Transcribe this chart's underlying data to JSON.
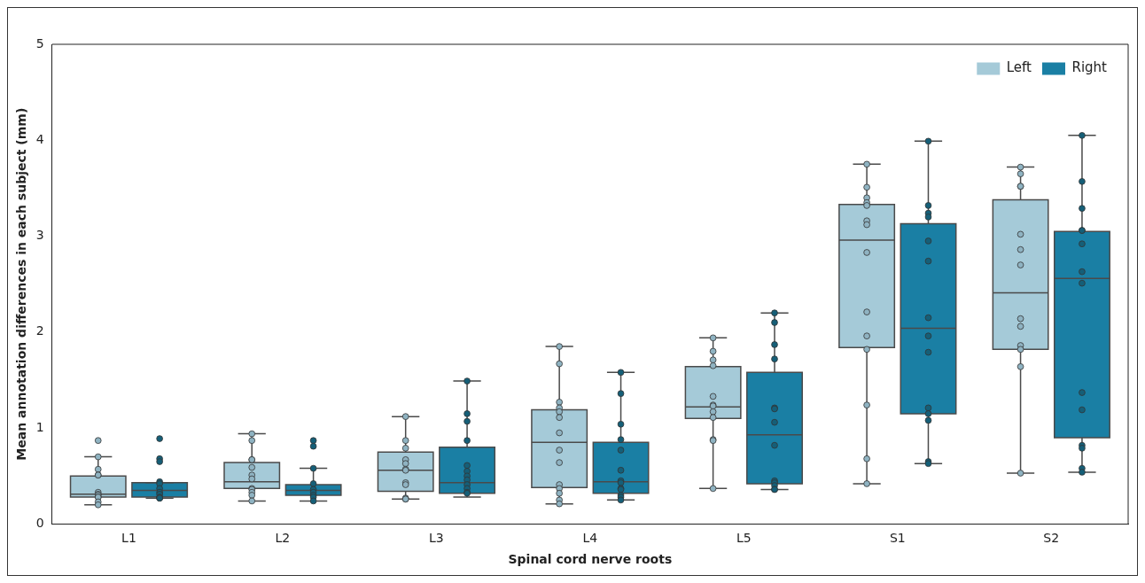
{
  "chart_data": {
    "type": "box",
    "xlabel": "Spinal cord nerve roots",
    "ylabel": "Mean annotation differences in each subject (mm)",
    "categories": [
      "L1",
      "L2",
      "L3",
      "L4",
      "L5",
      "S1",
      "S2"
    ],
    "ylim": [
      0,
      5
    ],
    "yticks": [
      0,
      1,
      2,
      3,
      4,
      5
    ],
    "legend": "top right",
    "marker": "circle",
    "series": [
      {
        "name": "Left",
        "color": "#a5cad8",
        "boxes": [
          {
            "low": 0.2,
            "q1": 0.28,
            "median": 0.31,
            "q3": 0.5,
            "high": 0.7
          },
          {
            "low": 0.24,
            "q1": 0.37,
            "median": 0.44,
            "q3": 0.64,
            "high": 0.94
          },
          {
            "low": 0.26,
            "q1": 0.34,
            "median": 0.56,
            "q3": 0.75,
            "high": 1.12
          },
          {
            "low": 0.21,
            "q1": 0.38,
            "median": 0.85,
            "q3": 1.19,
            "high": 1.85
          },
          {
            "low": 0.37,
            "q1": 1.1,
            "median": 1.22,
            "q3": 1.64,
            "high": 1.94
          },
          {
            "low": 0.42,
            "q1": 1.84,
            "median": 2.96,
            "q3": 3.33,
            "high": 3.75
          },
          {
            "low": 0.53,
            "q1": 1.82,
            "median": 2.41,
            "q3": 3.38,
            "high": 3.72
          }
        ]
      },
      {
        "name": "Right",
        "color": "#1a7fa4",
        "boxes": [
          {
            "low": 0.27,
            "q1": 0.28,
            "median": 0.35,
            "q3": 0.43,
            "high": 0.43
          },
          {
            "low": 0.24,
            "q1": 0.3,
            "median": 0.35,
            "q3": 0.41,
            "high": 0.58
          },
          {
            "low": 0.28,
            "q1": 0.32,
            "median": 0.43,
            "q3": 0.8,
            "high": 1.49
          },
          {
            "low": 0.25,
            "q1": 0.32,
            "median": 0.44,
            "q3": 0.85,
            "high": 1.58
          },
          {
            "low": 0.36,
            "q1": 0.42,
            "median": 0.93,
            "q3": 1.58,
            "high": 2.2
          },
          {
            "low": 0.63,
            "q1": 1.15,
            "median": 2.04,
            "q3": 3.13,
            "high": 3.99
          },
          {
            "low": 0.54,
            "q1": 0.9,
            "median": 2.56,
            "q3": 3.05,
            "high": 4.05
          }
        ]
      },
      {
        "type": "scatter",
        "color": "#8fb3c2",
        "x": [
          "L1",
          "L1",
          "L1",
          "L1",
          "L1",
          "L1",
          "L1",
          "L1",
          "L1",
          "L1",
          "L1",
          "L1",
          "L2",
          "L2",
          "L2",
          "L2",
          "L2",
          "L2",
          "L2",
          "L2",
          "L2",
          "L2",
          "L2",
          "L2",
          "L3",
          "L3",
          "L3",
          "L3",
          "L3",
          "L3",
          "L3",
          "L3",
          "L3",
          "L3",
          "L3",
          "L3",
          "L4",
          "L4",
          "L4",
          "L4",
          "L4",
          "L4",
          "L4",
          "L4",
          "L4",
          "L4",
          "L4",
          "L4",
          "L4",
          "L4",
          "L5",
          "L5",
          "L5",
          "L5",
          "L5",
          "L5",
          "L5",
          "L5",
          "L5",
          "L5",
          "L5",
          "L5",
          "S1",
          "S1",
          "S1",
          "S1",
          "S1",
          "S1",
          "S1",
          "S1",
          "S1",
          "S1",
          "S1",
          "S1",
          "S1",
          "S1",
          "S2",
          "S2",
          "S2",
          "S2",
          "S2",
          "S2",
          "S2",
          "S2",
          "S2",
          "S2",
          "S2",
          "S2",
          "S2"
        ],
        "values": [
          0.87,
          0.7,
          0.57,
          0.51,
          0.51,
          0.33,
          0.31,
          0.3,
          0.28,
          0.28,
          0.23,
          0.2,
          0.94,
          0.87,
          0.67,
          0.67,
          0.59,
          0.51,
          0.47,
          0.37,
          0.36,
          0.33,
          0.3,
          0.24,
          1.12,
          0.87,
          0.79,
          0.67,
          0.63,
          0.57,
          0.56,
          0.43,
          0.41,
          0.27,
          0.26,
          0.26,
          1.85,
          1.67,
          1.27,
          1.21,
          1.17,
          1.11,
          0.95,
          0.77,
          0.64,
          0.41,
          0.37,
          0.32,
          0.25,
          0.21,
          1.94,
          1.8,
          1.71,
          1.65,
          1.33,
          1.24,
          1.23,
          1.17,
          1.11,
          0.88,
          0.87,
          0.37,
          3.75,
          3.51,
          3.4,
          3.35,
          3.32,
          3.16,
          3.12,
          2.83,
          2.21,
          1.96,
          1.82,
          1.24,
          0.68,
          0.42,
          3.72,
          3.65,
          3.52,
          3.52,
          3.02,
          2.86,
          2.7,
          2.14,
          2.06,
          1.86,
          1.82,
          1.64,
          0.53
        ]
      },
      {
        "type": "scatter",
        "color": "#155f78",
        "x": [
          "L1",
          "L1",
          "L1",
          "L1",
          "L1",
          "L1",
          "L1",
          "L1",
          "L1",
          "L1",
          "L1",
          "L1",
          "L2",
          "L2",
          "L2",
          "L2",
          "L2",
          "L2",
          "L2",
          "L2",
          "L2",
          "L3",
          "L3",
          "L3",
          "L3",
          "L3",
          "L3",
          "L3",
          "L3",
          "L3",
          "L3",
          "L3",
          "L3",
          "L4",
          "L4",
          "L4",
          "L4",
          "L4",
          "L4",
          "L4",
          "L4",
          "L4",
          "L4",
          "L4",
          "L4",
          "L4",
          "L5",
          "L5",
          "L5",
          "L5",
          "L5",
          "L5",
          "L5",
          "L5",
          "L5",
          "L5",
          "L5",
          "L5",
          "L5",
          "S1",
          "S1",
          "S1",
          "S1",
          "S1",
          "S1",
          "S1",
          "S1",
          "S1",
          "S1",
          "S1",
          "S1",
          "S1",
          "S1",
          "S2",
          "S2",
          "S2",
          "S2",
          "S2",
          "S2",
          "S2",
          "S2",
          "S2",
          "S2",
          "S2",
          "S2",
          "S2",
          "S2"
        ],
        "values": [
          0.89,
          0.68,
          0.65,
          0.44,
          0.42,
          0.37,
          0.33,
          0.31,
          0.28,
          0.27,
          0.27,
          0.27,
          0.87,
          0.81,
          0.58,
          0.42,
          0.36,
          0.33,
          0.3,
          0.28,
          0.24,
          1.49,
          1.15,
          1.07,
          0.87,
          0.61,
          0.55,
          0.5,
          0.46,
          0.41,
          0.37,
          0.33,
          0.32,
          1.58,
          1.36,
          1.04,
          0.88,
          0.77,
          0.56,
          0.45,
          0.43,
          0.37,
          0.36,
          0.3,
          0.28,
          0.25,
          2.2,
          2.1,
          1.87,
          1.72,
          1.21,
          1.2,
          1.06,
          0.82,
          0.45,
          0.43,
          0.4,
          0.36,
          0.36,
          3.99,
          3.32,
          3.24,
          3.2,
          2.95,
          2.74,
          2.15,
          1.96,
          1.79,
          1.21,
          1.15,
          1.08,
          0.65,
          0.63,
          4.05,
          3.57,
          3.29,
          3.06,
          3.06,
          2.92,
          2.63,
          2.51,
          1.37,
          1.19,
          0.82,
          0.79,
          0.58,
          0.54
        ]
      }
    ]
  }
}
